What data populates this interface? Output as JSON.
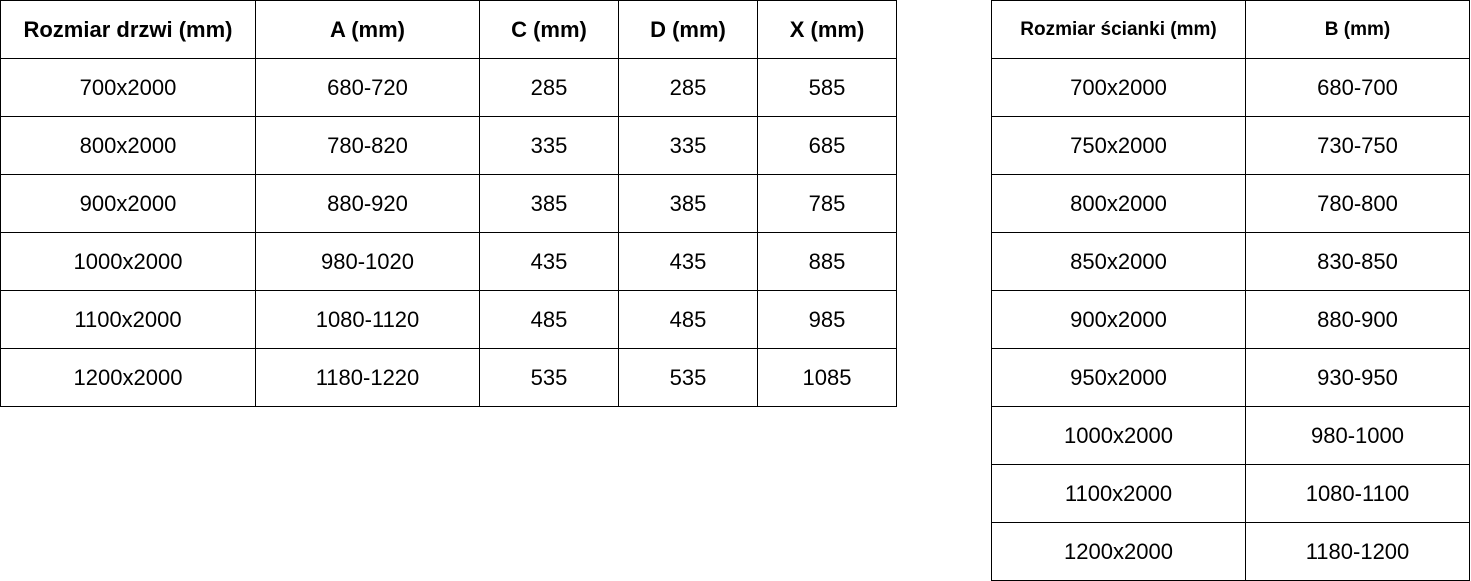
{
  "door_table": {
    "headers": [
      "Rozmiar drzwi (mm)",
      "A (mm)",
      "C (mm)",
      "D (mm)",
      "X (mm)"
    ],
    "rows": [
      [
        "700x2000",
        "680-720",
        "285",
        "285",
        "585"
      ],
      [
        "800x2000",
        "780-820",
        "335",
        "335",
        "685"
      ],
      [
        "900x2000",
        "880-920",
        "385",
        "385",
        "785"
      ],
      [
        "1000x2000",
        "980-1020",
        "435",
        "435",
        "885"
      ],
      [
        "1100x2000",
        "1080-1120",
        "485",
        "485",
        "985"
      ],
      [
        "1200x2000",
        "1180-1220",
        "535",
        "535",
        "1085"
      ]
    ]
  },
  "wall_table": {
    "headers": [
      "Rozmiar ścianki (mm)",
      "B (mm)"
    ],
    "rows": [
      [
        "700x2000",
        "680-700"
      ],
      [
        "750x2000",
        "730-750"
      ],
      [
        "800x2000",
        "780-800"
      ],
      [
        "850x2000",
        "830-850"
      ],
      [
        "900x2000",
        "880-900"
      ],
      [
        "950x2000",
        "930-950"
      ],
      [
        "1000x2000",
        "980-1000"
      ],
      [
        "1100x2000",
        "1080-1100"
      ],
      [
        "1200x2000",
        "1180-1200"
      ]
    ]
  }
}
